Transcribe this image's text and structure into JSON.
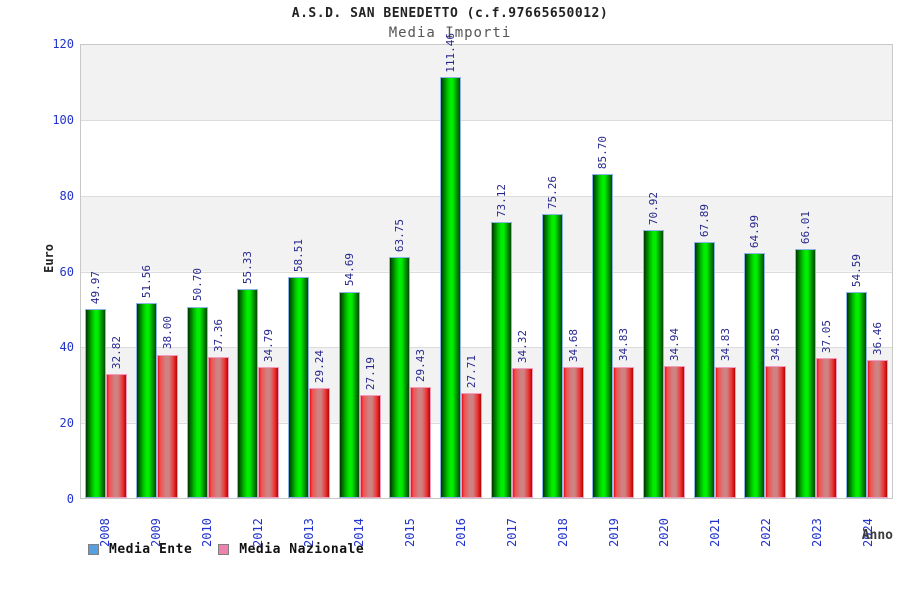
{
  "chart_data": {
    "type": "bar",
    "title": "A.S.D. SAN BENEDETTO (c.f.97665650012)",
    "subtitle": "Media Importi",
    "xlabel": "Anno",
    "ylabel": "Euro",
    "ylim": [
      0,
      120
    ],
    "yticks": [
      0,
      20,
      40,
      60,
      80,
      100,
      120
    ],
    "grid": "horizontal gridlines with alternating shaded bands every 20 units",
    "legend_position": "bottom-left",
    "categories": [
      "2008",
      "2009",
      "2010",
      "2012",
      "2013",
      "2014",
      "2015",
      "2016",
      "2017",
      "2018",
      "2019",
      "2020",
      "2021",
      "2022",
      "2023",
      "2024"
    ],
    "series": [
      {
        "name": "Media Ente",
        "key": "ente",
        "legend_color": "#58a0e0",
        "bar_color": "green gradient cylinder",
        "values": [
          49.97,
          51.56,
          50.7,
          55.33,
          58.51,
          54.69,
          63.75,
          111.46,
          73.12,
          75.26,
          85.7,
          70.92,
          67.89,
          64.99,
          66.01,
          54.59
        ]
      },
      {
        "name": "Media Nazionale",
        "key": "nazionale",
        "legend_color": "#ee82ae",
        "bar_color": "red gradient cylinder",
        "values": [
          32.82,
          38.0,
          37.36,
          34.79,
          29.24,
          27.19,
          29.43,
          27.71,
          34.32,
          34.68,
          34.83,
          34.94,
          34.83,
          34.85,
          37.05,
          36.46
        ]
      }
    ]
  },
  "style": {
    "band_color": "#f2f2f2",
    "band_alt_color": "#ffffff",
    "grid_color": "#dcdcdc",
    "plot_border_color": "#c8c8c8",
    "axis_tick_color": "#2233cc",
    "value_label_color": "#28288f",
    "title_color": "#222222",
    "subtitle_color": "#555555",
    "ente_border": "#8fb4e8",
    "nazionale_border": "#f49bc0"
  }
}
